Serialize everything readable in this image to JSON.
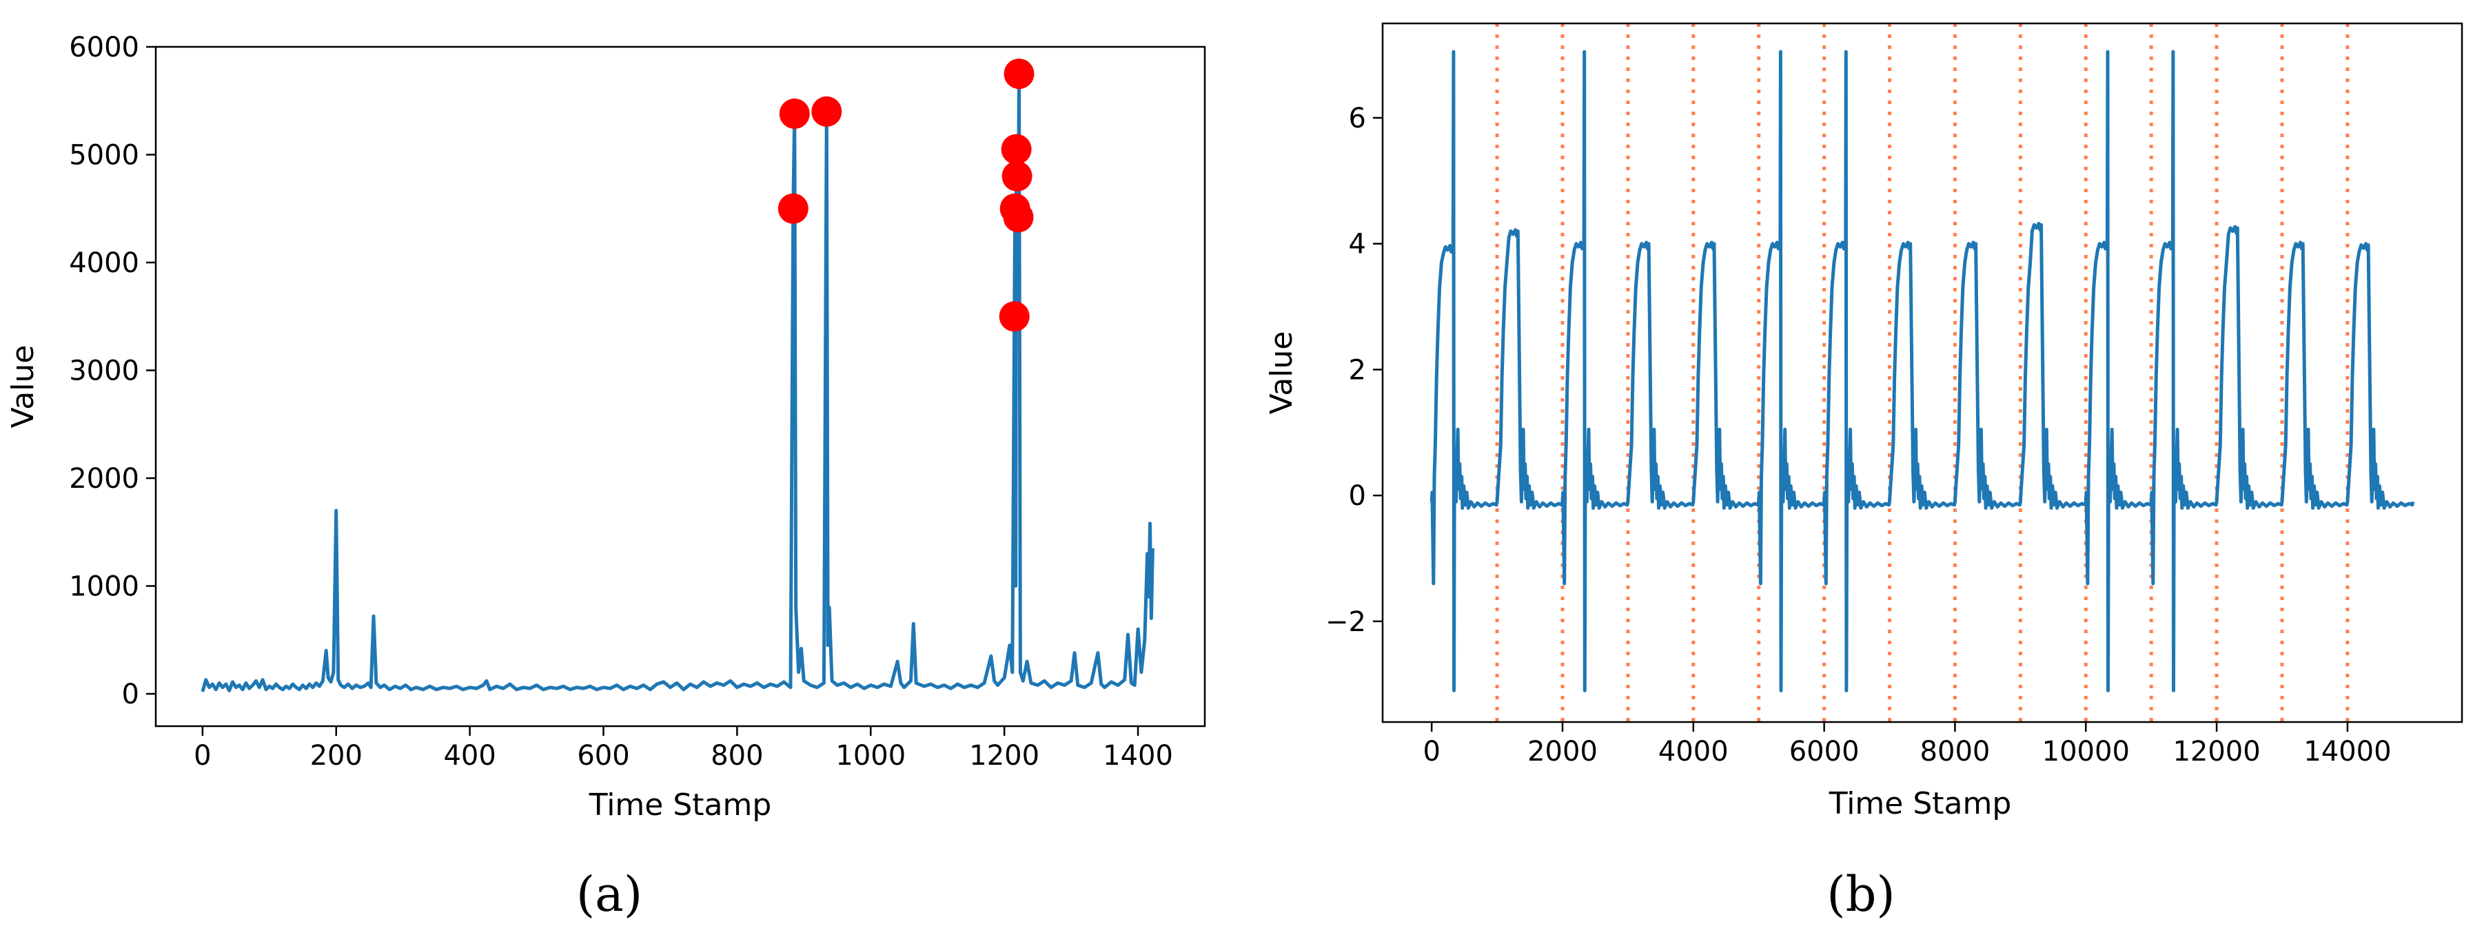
{
  "chart_data": [
    {
      "id": "a",
      "type": "line",
      "caption": "(a)",
      "xlabel": "Time Stamp",
      "ylabel": "Value",
      "xlim": [
        -70,
        1500
      ],
      "ylim": [
        -300,
        6000
      ],
      "xticks": [
        0,
        200,
        400,
        600,
        800,
        1000,
        1200,
        1400
      ],
      "yticks": [
        0,
        1000,
        2000,
        3000,
        4000,
        5000,
        6000
      ],
      "series": [
        {
          "name": "value",
          "color": "#1f77b4",
          "points": [
            [
              0,
              20
            ],
            [
              5,
              130
            ],
            [
              10,
              60
            ],
            [
              15,
              90
            ],
            [
              20,
              40
            ],
            [
              25,
              100
            ],
            [
              30,
              60
            ],
            [
              35,
              90
            ],
            [
              40,
              30
            ],
            [
              45,
              110
            ],
            [
              50,
              60
            ],
            [
              55,
              80
            ],
            [
              60,
              40
            ],
            [
              65,
              100
            ],
            [
              70,
              50
            ],
            [
              75,
              80
            ],
            [
              80,
              120
            ],
            [
              85,
              60
            ],
            [
              90,
              130
            ],
            [
              95,
              40
            ],
            [
              100,
              70
            ],
            [
              105,
              50
            ],
            [
              110,
              90
            ],
            [
              115,
              60
            ],
            [
              120,
              40
            ],
            [
              125,
              70
            ],
            [
              130,
              50
            ],
            [
              135,
              90
            ],
            [
              140,
              60
            ],
            [
              145,
              40
            ],
            [
              150,
              80
            ],
            [
              155,
              50
            ],
            [
              160,
              90
            ],
            [
              165,
              60
            ],
            [
              170,
              100
            ],
            [
              175,
              70
            ],
            [
              180,
              120
            ],
            [
              185,
              400
            ],
            [
              188,
              150
            ],
            [
              192,
              110
            ],
            [
              196,
              200
            ],
            [
              200,
              1700
            ],
            [
              203,
              130
            ],
            [
              207,
              80
            ],
            [
              212,
              60
            ],
            [
              218,
              90
            ],
            [
              224,
              50
            ],
            [
              230,
              80
            ],
            [
              236,
              60
            ],
            [
              242,
              70
            ],
            [
              248,
              100
            ],
            [
              252,
              60
            ],
            [
              256,
              720
            ],
            [
              260,
              100
            ],
            [
              266,
              60
            ],
            [
              272,
              80
            ],
            [
              280,
              40
            ],
            [
              288,
              70
            ],
            [
              296,
              50
            ],
            [
              304,
              80
            ],
            [
              312,
              40
            ],
            [
              320,
              60
            ],
            [
              330,
              40
            ],
            [
              340,
              70
            ],
            [
              350,
              40
            ],
            [
              360,
              60
            ],
            [
              370,
              50
            ],
            [
              380,
              70
            ],
            [
              390,
              40
            ],
            [
              400,
              60
            ],
            [
              410,
              50
            ],
            [
              420,
              80
            ],
            [
              425,
              120
            ],
            [
              430,
              40
            ],
            [
              440,
              70
            ],
            [
              450,
              50
            ],
            [
              460,
              90
            ],
            [
              470,
              40
            ],
            [
              480,
              60
            ],
            [
              490,
              50
            ],
            [
              500,
              80
            ],
            [
              510,
              40
            ],
            [
              520,
              60
            ],
            [
              530,
              50
            ],
            [
              540,
              70
            ],
            [
              550,
              40
            ],
            [
              560,
              60
            ],
            [
              570,
              50
            ],
            [
              580,
              70
            ],
            [
              590,
              40
            ],
            [
              600,
              60
            ],
            [
              610,
              50
            ],
            [
              620,
              80
            ],
            [
              630,
              40
            ],
            [
              640,
              70
            ],
            [
              650,
              50
            ],
            [
              660,
              80
            ],
            [
              670,
              40
            ],
            [
              680,
              90
            ],
            [
              690,
              110
            ],
            [
              700,
              60
            ],
            [
              710,
              100
            ],
            [
              720,
              40
            ],
            [
              730,
              90
            ],
            [
              740,
              60
            ],
            [
              750,
              110
            ],
            [
              760,
              70
            ],
            [
              770,
              100
            ],
            [
              780,
              80
            ],
            [
              790,
              120
            ],
            [
              800,
              60
            ],
            [
              810,
              90
            ],
            [
              820,
              70
            ],
            [
              830,
              100
            ],
            [
              840,
              60
            ],
            [
              850,
              90
            ],
            [
              860,
              70
            ],
            [
              870,
              110
            ],
            [
              880,
              60
            ],
            [
              884,
              4500
            ],
            [
              886,
              5380
            ],
            [
              888,
              800
            ],
            [
              892,
              200
            ],
            [
              896,
              420
            ],
            [
              900,
              120
            ],
            [
              910,
              80
            ],
            [
              920,
              60
            ],
            [
              930,
              100
            ],
            [
              934,
              5400
            ],
            [
              936,
              450
            ],
            [
              938,
              800
            ],
            [
              942,
              120
            ],
            [
              950,
              80
            ],
            [
              960,
              100
            ],
            [
              970,
              60
            ],
            [
              980,
              90
            ],
            [
              990,
              50
            ],
            [
              1000,
              80
            ],
            [
              1010,
              60
            ],
            [
              1020,
              90
            ],
            [
              1030,
              70
            ],
            [
              1040,
              300
            ],
            [
              1045,
              100
            ],
            [
              1050,
              60
            ],
            [
              1060,
              120
            ],
            [
              1064,
              650
            ],
            [
              1068,
              100
            ],
            [
              1080,
              70
            ],
            [
              1090,
              90
            ],
            [
              1100,
              60
            ],
            [
              1110,
              80
            ],
            [
              1120,
              50
            ],
            [
              1130,
              90
            ],
            [
              1140,
              60
            ],
            [
              1150,
              80
            ],
            [
              1160,
              60
            ],
            [
              1170,
              100
            ],
            [
              1180,
              350
            ],
            [
              1185,
              120
            ],
            [
              1190,
              80
            ],
            [
              1200,
              150
            ],
            [
              1208,
              450
            ],
            [
              1212,
              200
            ],
            [
              1215,
              3500
            ],
            [
              1216,
              4500
            ],
            [
              1217,
              1000
            ],
            [
              1218,
              5050
            ],
            [
              1219,
              4800
            ],
            [
              1220,
              4550
            ],
            [
              1221,
              4420
            ],
            [
              1222,
              5750
            ],
            [
              1224,
              200
            ],
            [
              1228,
              120
            ],
            [
              1234,
              300
            ],
            [
              1240,
              100
            ],
            [
              1250,
              80
            ],
            [
              1260,
              120
            ],
            [
              1270,
              60
            ],
            [
              1280,
              100
            ],
            [
              1290,
              80
            ],
            [
              1300,
              120
            ],
            [
              1305,
              380
            ],
            [
              1310,
              80
            ],
            [
              1320,
              60
            ],
            [
              1330,
              100
            ],
            [
              1340,
              380
            ],
            [
              1345,
              90
            ],
            [
              1350,
              60
            ],
            [
              1360,
              110
            ],
            [
              1370,
              80
            ],
            [
              1380,
              130
            ],
            [
              1385,
              550
            ],
            [
              1390,
              100
            ],
            [
              1395,
              80
            ],
            [
              1400,
              600
            ],
            [
              1405,
              200
            ],
            [
              1410,
              500
            ],
            [
              1414,
              1300
            ],
            [
              1416,
              900
            ],
            [
              1418,
              1580
            ],
            [
              1420,
              700
            ],
            [
              1422,
              1350
            ]
          ]
        }
      ],
      "anomalies": [
        {
          "x": 884,
          "y": 4500
        },
        {
          "x": 886,
          "y": 5380
        },
        {
          "x": 934,
          "y": 5400
        },
        {
          "x": 1215,
          "y": 3500
        },
        {
          "x": 1216,
          "y": 4500
        },
        {
          "x": 1218,
          "y": 5050
        },
        {
          "x": 1219,
          "y": 4800
        },
        {
          "x": 1221,
          "y": 4420
        },
        {
          "x": 1222,
          "y": 5750
        }
      ],
      "anomaly_color": "#ff0000"
    },
    {
      "id": "b",
      "type": "line",
      "caption": "(b)",
      "xlabel": "Time Stamp",
      "ylabel": "Value",
      "xlim": [
        -750,
        15750
      ],
      "ylim": [
        -3.6,
        7.5
      ],
      "xticks": [
        0,
        2000,
        4000,
        6000,
        8000,
        10000,
        12000,
        14000
      ],
      "yticks": [
        -2,
        0,
        2,
        4,
        6
      ],
      "vlines": [
        1000,
        2000,
        3000,
        4000,
        5000,
        6000,
        7000,
        8000,
        9000,
        10000,
        11000,
        12000,
        13000,
        14000
      ],
      "vline_color": "#ff7f50",
      "series": [
        {
          "name": "value",
          "color": "#1f77b4",
          "period": 1000,
          "num_cycles": 15,
          "spike_cycles": [
            0,
            2,
            5,
            6,
            10,
            11
          ],
          "spike_high": 7.05,
          "spike_low": -3.1,
          "plateau_values": [
            3.95,
            4.2,
            4.0,
            4.0,
            4.0,
            4.0,
            4.0,
            4.0,
            4.0,
            4.3,
            4.0,
            4.0,
            4.25,
            4.0,
            3.98
          ],
          "baseline": -0.15
        }
      ]
    }
  ]
}
